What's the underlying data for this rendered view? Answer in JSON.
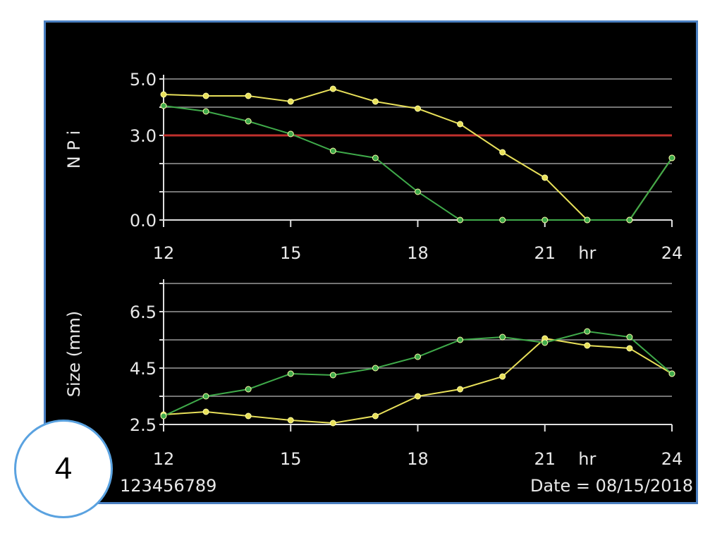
{
  "badge": {
    "number": "4"
  },
  "footer": {
    "id": "123456789",
    "date": "Date = 08/15/2018"
  },
  "colors": {
    "yellow": "#e8e05a",
    "green": "#3faa4a",
    "threshold": "#c0302c",
    "grid": "#9a9a9a",
    "frame": "#4a7fc1"
  },
  "chart_data": [
    {
      "type": "line",
      "ylabel": "N P i",
      "x_unit_label": "hr",
      "xlim": [
        12,
        24
      ],
      "ylim": [
        0,
        5
      ],
      "yticks": [
        "0.0",
        "3.0",
        "5.0"
      ],
      "xticks": [
        "12",
        "15",
        "18",
        "21",
        "24"
      ],
      "threshold": 3.0,
      "series": [
        {
          "color": "yellow",
          "x": [
            12,
            13,
            14,
            15,
            16,
            17,
            18,
            19,
            20,
            21,
            22,
            23,
            24
          ],
          "y": [
            4.45,
            4.4,
            4.4,
            4.2,
            4.65,
            4.2,
            3.95,
            3.4,
            2.4,
            1.5,
            0.0,
            0.0,
            2.2
          ]
        },
        {
          "color": "green",
          "x": [
            12,
            13,
            14,
            15,
            16,
            17,
            18,
            19,
            20,
            21,
            22,
            23,
            24
          ],
          "y": [
            4.05,
            3.85,
            3.5,
            3.05,
            2.45,
            2.2,
            1.0,
            0.0,
            0.0,
            0.0,
            0.0,
            0.0,
            2.2
          ]
        }
      ]
    },
    {
      "type": "line",
      "ylabel": "Size (mm)",
      "x_unit_label": "hr",
      "xlim": [
        12,
        24
      ],
      "ylim": [
        2.5,
        7.5
      ],
      "yticks": [
        "2.5",
        "4.5",
        "6.5"
      ],
      "xticks": [
        "12",
        "15",
        "18",
        "21",
        "24"
      ],
      "series": [
        {
          "color": "yellow",
          "x": [
            12,
            13,
            14,
            15,
            16,
            17,
            18,
            19,
            20,
            21,
            22,
            23,
            24
          ],
          "y": [
            2.85,
            2.95,
            2.8,
            2.65,
            2.55,
            2.8,
            3.5,
            3.75,
            4.2,
            5.55,
            5.3,
            5.2,
            4.3
          ]
        },
        {
          "color": "green",
          "x": [
            12,
            13,
            14,
            15,
            16,
            17,
            18,
            19,
            20,
            21,
            22,
            23,
            24
          ],
          "y": [
            2.8,
            3.5,
            3.75,
            4.3,
            4.25,
            4.5,
            4.9,
            5.5,
            5.6,
            5.4,
            5.8,
            5.6,
            4.3
          ]
        }
      ]
    }
  ]
}
